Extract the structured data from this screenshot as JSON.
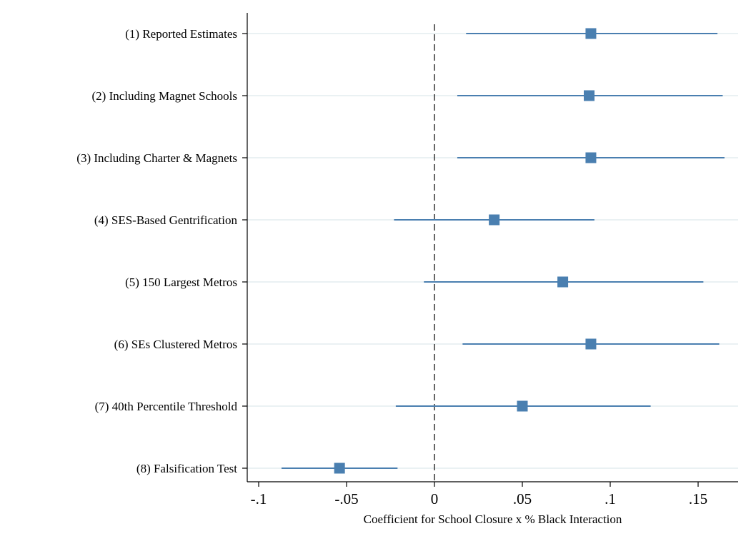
{
  "chart_data": {
    "type": "coefficient-plot",
    "xlabel": "Coefficient for School Closure x % Black Interaction",
    "xlim": [
      -0.1,
      0.17
    ],
    "xticks": [
      {
        "value": -0.1,
        "label": "-.1"
      },
      {
        "value": -0.05,
        "label": "-.05"
      },
      {
        "value": 0,
        "label": "0"
      },
      {
        "value": 0.05,
        "label": ".05"
      },
      {
        "value": 0.1,
        "label": ".1"
      },
      {
        "value": 0.15,
        "label": ".15"
      }
    ],
    "reference_line": {
      "x": 0,
      "style": "dashed"
    },
    "grid": true,
    "colors": {
      "marker": "#4a7fb0",
      "ci_line": "#4a7fb0",
      "grid": "#eaf1f3",
      "reference": "#000000"
    },
    "series": [
      {
        "label": "(1) Reported Estimates",
        "estimate": 0.089,
        "ci_low": 0.018,
        "ci_high": 0.161
      },
      {
        "label": "(2) Including Magnet Schools",
        "estimate": 0.088,
        "ci_low": 0.013,
        "ci_high": 0.164
      },
      {
        "label": "(3) Including Charter & Magnets",
        "estimate": 0.089,
        "ci_low": 0.013,
        "ci_high": 0.165
      },
      {
        "label": "(4) SES-Based Gentrification",
        "estimate": 0.034,
        "ci_low": -0.023,
        "ci_high": 0.091
      },
      {
        "label": "(5) 150 Largest Metros",
        "estimate": 0.073,
        "ci_low": -0.006,
        "ci_high": 0.153
      },
      {
        "label": "(6) SEs Clustered Metros",
        "estimate": 0.089,
        "ci_low": 0.016,
        "ci_high": 0.162
      },
      {
        "label": "(7) 40th Percentile Threshold",
        "estimate": 0.05,
        "ci_low": -0.022,
        "ci_high": 0.123
      },
      {
        "label": "(8) Falsification Test",
        "estimate": -0.054,
        "ci_low": -0.087,
        "ci_high": -0.021
      }
    ]
  }
}
